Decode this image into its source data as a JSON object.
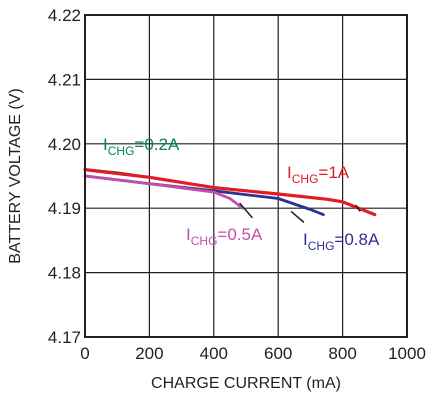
{
  "chart_data": {
    "type": "line",
    "xlabel": "CHARGE CURRENT (mA)",
    "ylabel": "BATTERY VOLTAGE (V)",
    "xlim": [
      0,
      1000
    ],
    "ylim": [
      4.17,
      4.22
    ],
    "x_ticks": [
      "0",
      "200",
      "400",
      "600",
      "800",
      "1000"
    ],
    "y_ticks": [
      "4.17",
      "4.18",
      "4.19",
      "4.20",
      "4.21",
      "4.22"
    ],
    "grid": true,
    "series": [
      {
        "label_main": "I",
        "label_sub": "CHG",
        "label_rest": "=0.2A",
        "color": "#00865a",
        "points": [
          [
            0,
            4.196
          ],
          [
            100,
            4.1955
          ],
          [
            170,
            4.195
          ]
        ]
      },
      {
        "label_main": "I",
        "label_sub": "CHG",
        "label_rest": "=1A",
        "color": "#e31b23",
        "points": [
          [
            0,
            4.196
          ],
          [
            200,
            4.1948
          ],
          [
            400,
            4.1932
          ],
          [
            600,
            4.1922
          ],
          [
            750,
            4.1914
          ],
          [
            800,
            4.191
          ],
          [
            900,
            4.189
          ]
        ]
      },
      {
        "label_main": "I",
        "label_sub": "CHG",
        "label_rest": "=0.5A",
        "color": "#c24fa8",
        "points": [
          [
            0,
            4.195
          ],
          [
            200,
            4.1938
          ],
          [
            400,
            4.1925
          ],
          [
            450,
            4.1915
          ],
          [
            490,
            4.19
          ]
        ]
      },
      {
        "label_main": "I",
        "label_sub": "CHG",
        "label_rest": "=0.8A",
        "color": "#2e3192",
        "points": [
          [
            0,
            4.195
          ],
          [
            200,
            4.1938
          ],
          [
            400,
            4.1927
          ],
          [
            600,
            4.1915
          ],
          [
            700,
            4.1898
          ],
          [
            740,
            4.189
          ]
        ]
      }
    ]
  }
}
